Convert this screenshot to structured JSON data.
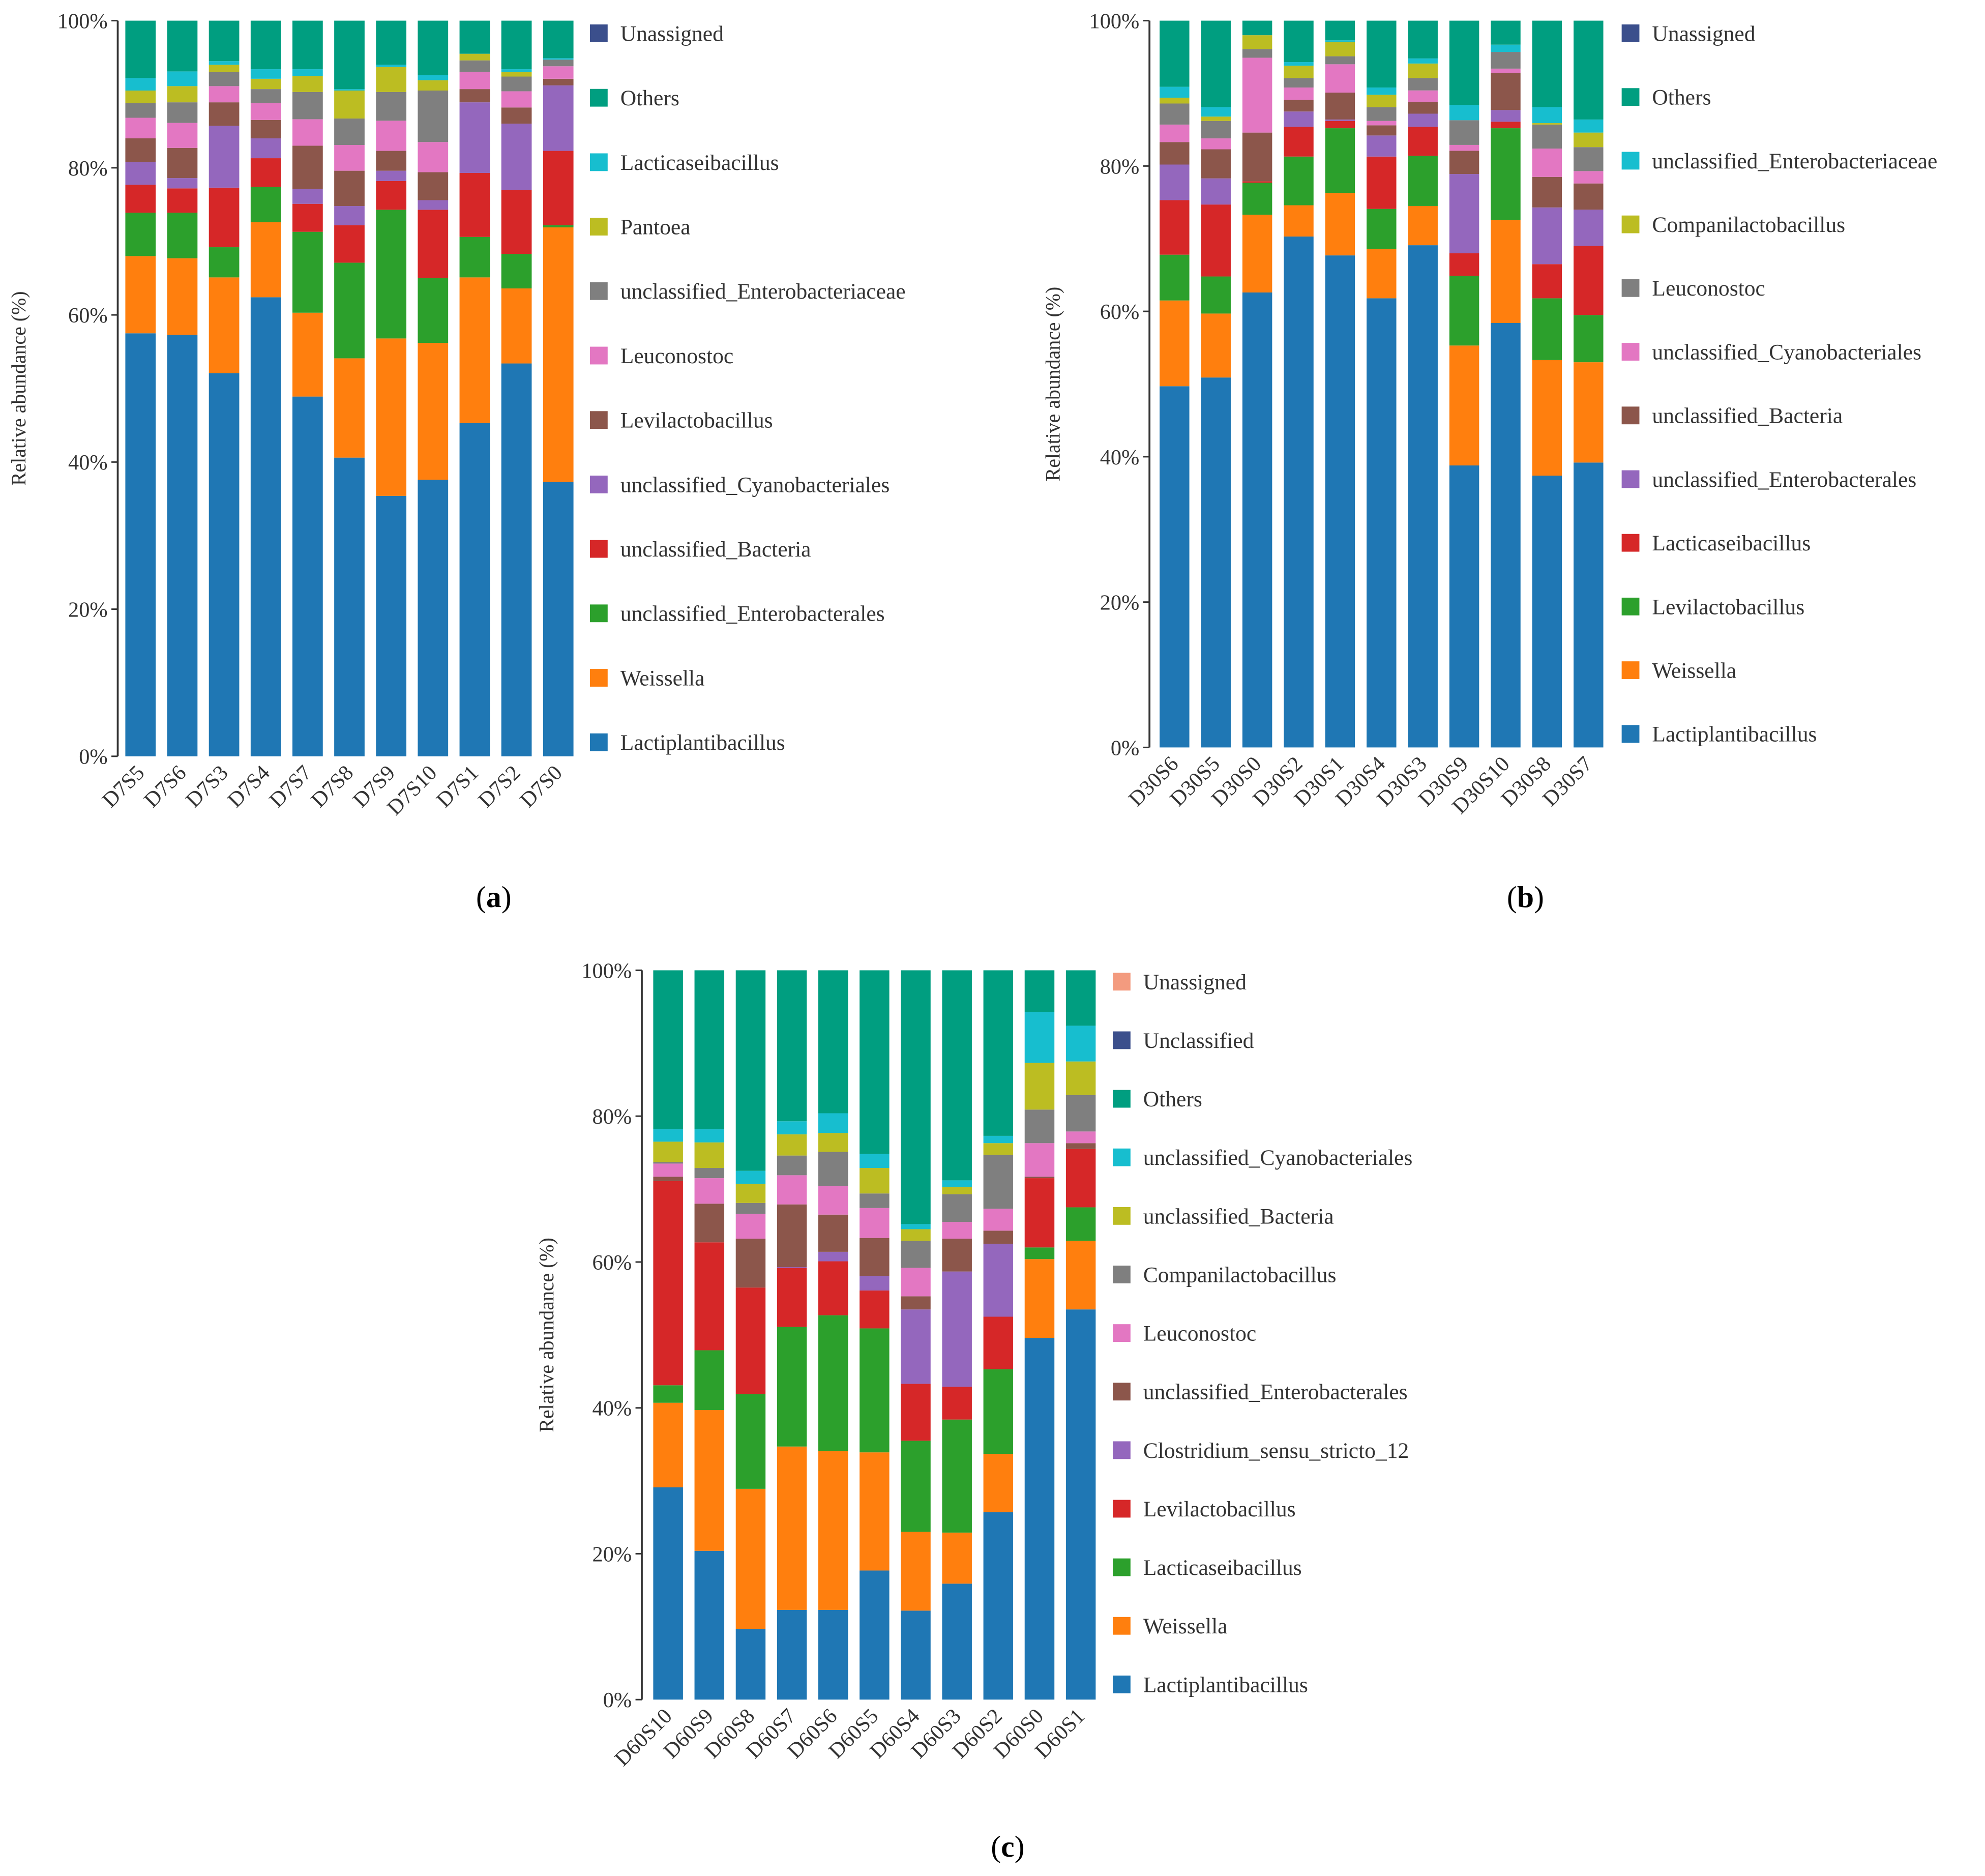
{
  "colors": {
    "Lactiplantibacillus": "#1f77b4",
    "Weissella": "#ff7f0e",
    "green": "#2ca02c",
    "red": "#d62728",
    "purple": "#9467bd",
    "brown": "#8c564b",
    "pink": "#e377c2",
    "gray": "#7f7f7f",
    "olive": "#bcbd22",
    "cyan": "#17becf",
    "Others": "#009e80",
    "navy": "#3b4f8c",
    "salmon": "#f39b7f"
  },
  "chart_data": [
    {
      "type": "bar",
      "stacked": true,
      "caption": "(a)",
      "ylabel": "Relative abundance (%)",
      "ylim": [
        0,
        100
      ],
      "yticks": [
        "0%",
        "20%",
        "40%",
        "60%",
        "80%",
        "100%"
      ],
      "legend_position": "right",
      "categories": [
        "D7S5",
        "D7S6",
        "D7S3",
        "D7S4",
        "D7S7",
        "D7S8",
        "D7S9",
        "D7S10",
        "D7S1",
        "D7S2",
        "D7S0"
      ],
      "series": [
        {
          "name": "Lactiplantibacillus",
          "color": "#1f77b4",
          "values": [
            57.5,
            57.3,
            52.1,
            62.4,
            48.9,
            40.6,
            35.4,
            37.6,
            45.3,
            53.4,
            37.3
          ]
        },
        {
          "name": "Weissella",
          "color": "#ff7f0e",
          "values": [
            10.5,
            10.4,
            13.0,
            10.2,
            11.4,
            13.5,
            21.4,
            18.6,
            19.8,
            10.2,
            34.6
          ]
        },
        {
          "name": "unclassified_Enterobacterales",
          "color": "#2ca02c",
          "values": [
            5.9,
            6.2,
            4.1,
            4.8,
            11.0,
            13.0,
            17.5,
            8.8,
            5.5,
            4.7,
            0.3
          ]
        },
        {
          "name": "unclassified_Bacteria",
          "color": "#d62728",
          "values": [
            3.8,
            3.3,
            8.1,
            3.9,
            3.8,
            5.1,
            3.9,
            9.3,
            8.7,
            8.7,
            10.1
          ]
        },
        {
          "name": "unclassified_Cyanobacteriales",
          "color": "#9467bd",
          "values": [
            3.1,
            1.4,
            8.4,
            2.7,
            2.0,
            2.6,
            1.4,
            1.3,
            9.6,
            9.0,
            8.9
          ]
        },
        {
          "name": "Levilactobacillus",
          "color": "#8c564b",
          "values": [
            3.2,
            4.1,
            3.2,
            2.5,
            5.9,
            4.8,
            2.7,
            3.8,
            1.8,
            2.2,
            0.9
          ]
        },
        {
          "name": "Leuconostoc",
          "color": "#e377c2",
          "values": [
            2.8,
            3.4,
            2.2,
            2.3,
            3.6,
            3.5,
            4.1,
            4.1,
            2.3,
            2.2,
            1.7
          ]
        },
        {
          "name": "unclassified_Enterobacteriaceae",
          "color": "#7f7f7f",
          "values": [
            2.0,
            2.8,
            1.9,
            1.9,
            3.7,
            3.6,
            3.9,
            7.0,
            1.6,
            2.0,
            0.9
          ]
        },
        {
          "name": "Pantoea",
          "color": "#bcbd22",
          "values": [
            1.7,
            2.2,
            1.0,
            1.4,
            2.2,
            3.8,
            3.4,
            1.4,
            0.9,
            0.6,
            0.0
          ]
        },
        {
          "name": "Lacticaseibacillus",
          "color": "#17becf",
          "values": [
            1.7,
            2.0,
            0.5,
            1.3,
            0.9,
            0.2,
            0.3,
            0.7,
            0.0,
            0.4,
            0.2
          ]
        },
        {
          "name": "Others",
          "color": "#009e80",
          "values": [
            7.8,
            6.9,
            5.5,
            6.6,
            6.6,
            9.3,
            6.0,
            7.4,
            4.5,
            6.6,
            5.1
          ]
        },
        {
          "name": "Unassigned",
          "color": "#3b4f8c",
          "values": [
            0,
            0,
            0,
            0,
            0,
            0,
            0,
            0,
            0,
            0,
            0
          ]
        }
      ]
    },
    {
      "type": "bar",
      "stacked": true,
      "caption": "(b)",
      "ylabel": "Relative abundance (%)",
      "ylim": [
        0,
        100
      ],
      "yticks": [
        "0%",
        "20%",
        "40%",
        "60%",
        "80%",
        "100%"
      ],
      "legend_position": "right",
      "categories": [
        "D30S6",
        "D30S5",
        "D30S0",
        "D30S2",
        "D30S1",
        "D30S4",
        "D30S3",
        "D30S9",
        "D30S10",
        "D30S8",
        "D30S7"
      ],
      "series": [
        {
          "name": "Lactiplantibacillus",
          "color": "#1f77b4",
          "values": [
            49.7,
            50.9,
            62.6,
            70.3,
            67.7,
            61.8,
            69.1,
            38.8,
            58.4,
            37.4,
            39.2
          ]
        },
        {
          "name": "Weissella",
          "color": "#ff7f0e",
          "values": [
            11.8,
            8.8,
            10.7,
            4.3,
            8.6,
            6.8,
            5.4,
            16.5,
            14.2,
            15.9,
            13.8
          ]
        },
        {
          "name": "Levilactobacillus",
          "color": "#2ca02c",
          "values": [
            6.3,
            5.1,
            4.4,
            6.7,
            8.9,
            5.5,
            6.9,
            9.6,
            12.6,
            8.5,
            6.5
          ]
        },
        {
          "name": "Lacticaseibacillus",
          "color": "#d62728",
          "values": [
            7.5,
            9.9,
            0.2,
            4.1,
            1.0,
            7.2,
            4.0,
            3.1,
            0.9,
            4.7,
            9.5
          ]
        },
        {
          "name": "unclassified_Enterobacterales",
          "color": "#9467bd",
          "values": [
            4.9,
            3.6,
            0.0,
            2.1,
            0.2,
            2.9,
            1.8,
            10.9,
            1.6,
            7.8,
            5.0
          ]
        },
        {
          "name": "unclassified_Bacteria",
          "color": "#8c564b",
          "values": [
            3.1,
            4.0,
            6.7,
            1.6,
            3.7,
            1.4,
            1.6,
            3.2,
            5.1,
            4.2,
            3.6
          ]
        },
        {
          "name": "unclassified_Cyanobacteriales",
          "color": "#e377c2",
          "values": [
            2.4,
            1.5,
            10.3,
            1.7,
            3.9,
            0.6,
            1.6,
            0.8,
            0.6,
            3.9,
            1.7
          ]
        },
        {
          "name": "Leuconostoc",
          "color": "#7f7f7f",
          "values": [
            2.9,
            2.4,
            1.2,
            1.3,
            1.1,
            1.9,
            1.7,
            3.4,
            2.3,
            3.3,
            3.3
          ]
        },
        {
          "name": "Companilactobacillus",
          "color": "#bcbd22",
          "values": [
            0.8,
            0.6,
            1.9,
            1.7,
            2.0,
            1.7,
            2.0,
            0.0,
            0.0,
            0.2,
            2.0
          ]
        },
        {
          "name": "unclassified_Enterobacteriaceae",
          "color": "#17becf",
          "values": [
            1.5,
            1.3,
            0.0,
            0.5,
            0.2,
            1.0,
            0.7,
            2.1,
            1.0,
            2.2,
            1.8
          ]
        },
        {
          "name": "Others",
          "color": "#009e80",
          "values": [
            9.1,
            11.9,
            2.0,
            5.7,
            2.7,
            9.2,
            5.2,
            11.6,
            3.3,
            11.9,
            13.6
          ]
        },
        {
          "name": "Unassigned",
          "color": "#3b4f8c",
          "values": [
            0,
            0,
            0,
            0,
            0,
            0,
            0,
            0,
            0,
            0,
            0
          ]
        }
      ]
    },
    {
      "type": "bar",
      "stacked": true,
      "caption": "(c)",
      "ylabel": "Relative abundance (%)",
      "ylim": [
        0,
        100
      ],
      "yticks": [
        "0%",
        "20%",
        "40%",
        "60%",
        "80%",
        "100%"
      ],
      "legend_position": "right",
      "categories": [
        "D60S10",
        "D60S9",
        "D60S8",
        "D60S7",
        "D60S6",
        "D60S5",
        "D60S4",
        "D60S3",
        "D60S2",
        "D60S0",
        "D60S1"
      ],
      "series": [
        {
          "name": "Lactiplantibacillus",
          "color": "#1f77b4",
          "values": [
            29.1,
            20.4,
            9.7,
            12.3,
            12.3,
            17.7,
            12.2,
            15.9,
            25.7,
            49.6,
            53.5
          ]
        },
        {
          "name": "Weissella",
          "color": "#ff7f0e",
          "values": [
            11.6,
            19.3,
            19.2,
            22.4,
            21.8,
            16.2,
            10.8,
            7.0,
            8.0,
            10.8,
            9.4
          ]
        },
        {
          "name": "Lacticaseibacillus",
          "color": "#2ca02c",
          "values": [
            2.4,
            8.2,
            13.0,
            16.4,
            18.6,
            17.0,
            12.5,
            15.5,
            11.6,
            1.6,
            4.6
          ]
        },
        {
          "name": "Levilactobacillus",
          "color": "#d62728",
          "values": [
            28.0,
            14.8,
            14.6,
            8.1,
            7.4,
            5.2,
            7.8,
            4.5,
            7.2,
            9.5,
            8.0
          ]
        },
        {
          "name": "Clostridium_sensu_stricto_12",
          "color": "#9467bd",
          "values": [
            0.0,
            0.0,
            0.0,
            0.1,
            1.3,
            2.0,
            10.2,
            15.8,
            10.0,
            0.0,
            0.0
          ]
        },
        {
          "name": "unclassified_Enterobacterales",
          "color": "#8c564b",
          "values": [
            0.6,
            5.3,
            6.7,
            8.6,
            5.1,
            5.2,
            1.8,
            4.5,
            1.8,
            0.2,
            0.8
          ]
        },
        {
          "name": "Leuconostoc",
          "color": "#e377c2",
          "values": [
            1.8,
            3.5,
            3.4,
            4.0,
            3.9,
            4.1,
            3.9,
            2.3,
            3.0,
            4.6,
            1.6
          ]
        },
        {
          "name": "Companilactobacillus",
          "color": "#7f7f7f",
          "values": [
            0.2,
            1.4,
            1.5,
            2.7,
            4.7,
            2.0,
            3.7,
            3.8,
            7.4,
            4.6,
            5.0
          ]
        },
        {
          "name": "unclassified_Bacteria",
          "color": "#bcbd22",
          "values": [
            2.8,
            3.5,
            2.6,
            2.9,
            2.6,
            3.5,
            1.6,
            1.0,
            1.6,
            6.4,
            4.6
          ]
        },
        {
          "name": "unclassified_Cyanobacteriales",
          "color": "#17becf",
          "values": [
            1.7,
            1.8,
            1.8,
            1.8,
            2.7,
            1.9,
            0.7,
            0.9,
            1.0,
            7.0,
            4.9
          ]
        },
        {
          "name": "Others",
          "color": "#009e80",
          "values": [
            21.8,
            21.8,
            27.5,
            20.7,
            19.6,
            25.2,
            34.8,
            28.8,
            22.7,
            5.7,
            7.6
          ]
        },
        {
          "name": "Unclassified",
          "color": "#3b4f8c",
          "values": [
            0,
            0,
            0,
            0,
            0,
            0,
            0,
            0,
            0,
            0,
            0
          ]
        },
        {
          "name": "Unassigned",
          "color": "#f39b7f",
          "values": [
            0,
            0,
            0,
            0,
            0,
            0,
            0,
            0,
            0,
            0,
            0
          ]
        }
      ]
    }
  ]
}
